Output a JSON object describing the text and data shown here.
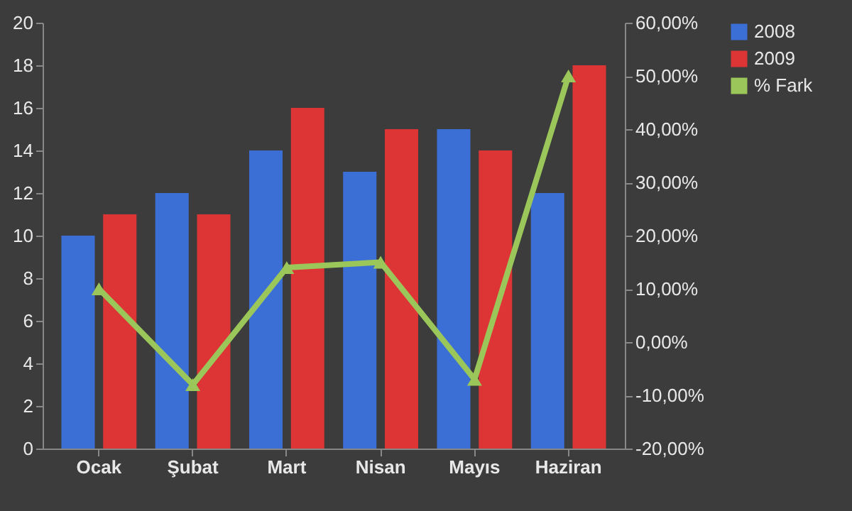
{
  "chart_data": {
    "type": "bar",
    "categories": [
      "Ocak",
      "Şubat",
      "Mart",
      "Nisan",
      "Mayıs",
      "Haziran"
    ],
    "series": [
      {
        "name": "2008",
        "color": "#3b6fd6",
        "values": [
          10,
          12,
          14,
          13,
          15,
          12
        ]
      },
      {
        "name": "2009",
        "color": "#dd3535",
        "values": [
          11,
          11,
          16,
          15,
          14,
          18
        ]
      },
      {
        "name": "% Fark",
        "type": "line",
        "axis": "y2",
        "color": "#9bc75a",
        "values": [
          10,
          -8,
          14,
          15,
          -7,
          50
        ]
      }
    ],
    "ylim": [
      0,
      20
    ],
    "yticks": [
      0,
      2,
      4,
      6,
      8,
      10,
      12,
      14,
      16,
      18,
      20
    ],
    "y2lim": [
      -20,
      60
    ],
    "y2ticks": [
      {
        "value": -20,
        "label": "-20,00%"
      },
      {
        "value": -10,
        "label": "-10,00%"
      },
      {
        "value": 0,
        "label": "0,00%"
      },
      {
        "value": 10,
        "label": "10,00%"
      },
      {
        "value": 20,
        "label": "20,00%"
      },
      {
        "value": 30,
        "label": "30,00%"
      },
      {
        "value": 40,
        "label": "40,00%"
      },
      {
        "value": 50,
        "label": "50,00%"
      },
      {
        "value": 60,
        "label": "60,00%"
      }
    ],
    "legend": "right",
    "marker": "triangle",
    "grid": false
  }
}
